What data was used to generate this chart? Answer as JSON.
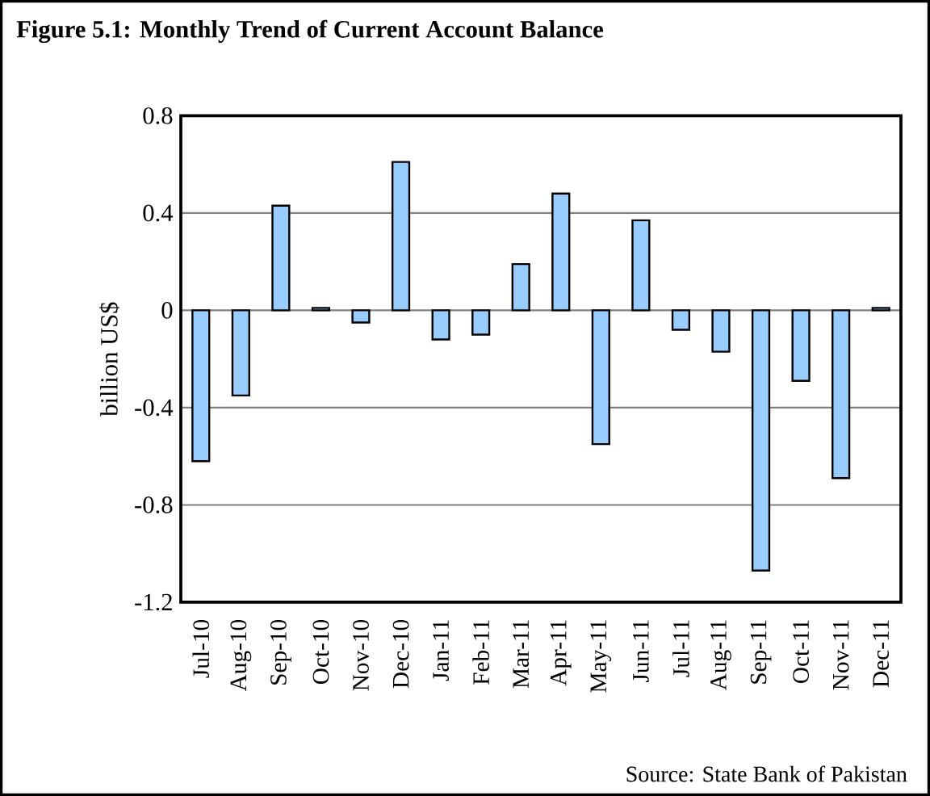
{
  "chart_data": {
    "type": "bar",
    "title": "Figure 5.1: Monthly Trend of  Current Account Balance",
    "ylabel": "billion US$",
    "categories": [
      "Jul-10",
      "Aug-10",
      "Sep-10",
      "Oct-10",
      "Nov-10",
      "Dec-10",
      "Jan-11",
      "Feb-11",
      "Mar-11",
      "Apr-11",
      "May-11",
      "Jun-11",
      "Jul-11",
      "Aug-11",
      "Sep-11",
      "Oct-11",
      "Nov-11",
      "Dec-11"
    ],
    "values": [
      -0.62,
      -0.35,
      0.43,
      0.01,
      -0.05,
      0.61,
      -0.12,
      -0.1,
      0.19,
      0.48,
      -0.55,
      0.37,
      -0.08,
      -0.17,
      -1.07,
      -0.29,
      -0.69,
      0.01
    ],
    "color": "#99ccff",
    "ylim": [
      -1.2,
      0.8
    ],
    "yticks": [
      -1.2,
      -0.8,
      -0.4,
      0,
      0.4,
      0.8
    ],
    "grid": "y",
    "annotations": [
      "Source: State Bank of Pakistan"
    ]
  }
}
